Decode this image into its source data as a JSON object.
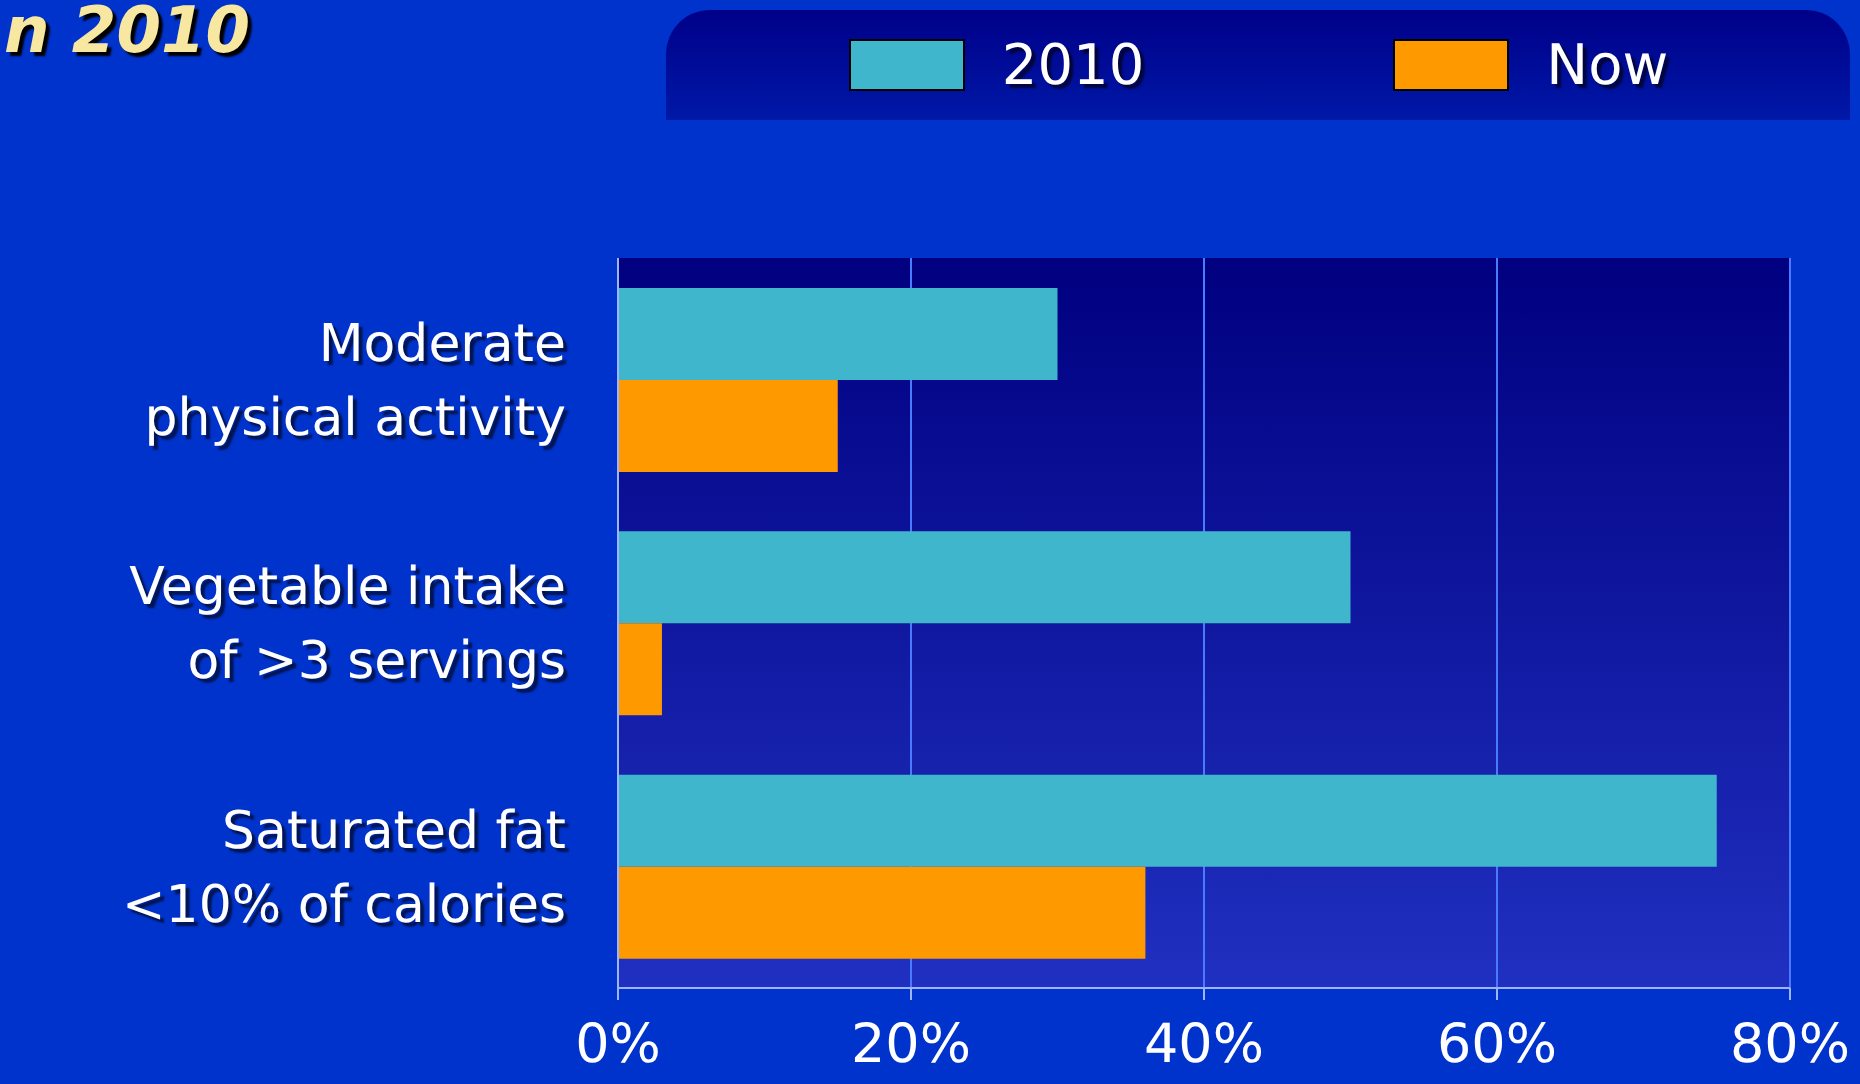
{
  "chart_data": {
    "type": "bar",
    "title": "n 2010",
    "orientation": "horizontal",
    "categories": [
      "Moderate\nphysical activity",
      "Vegetable intake\nof >3 servings",
      "Saturated fat\n<10% of calories"
    ],
    "series": [
      {
        "name": "2010",
        "color": "#3fb6cc",
        "values": [
          30,
          50,
          75
        ]
      },
      {
        "name": "Now",
        "color": "#ff9900",
        "values": [
          15,
          3,
          36
        ]
      }
    ],
    "xlim": [
      0,
      80
    ],
    "xticks": [
      {
        "value": 0,
        "label": "0%"
      },
      {
        "value": 20,
        "label": "20%"
      },
      {
        "value": 40,
        "label": "40%"
      },
      {
        "value": 60,
        "label": "60%"
      },
      {
        "value": 80,
        "label": "80%"
      }
    ],
    "grid": "x",
    "legend": "top"
  }
}
